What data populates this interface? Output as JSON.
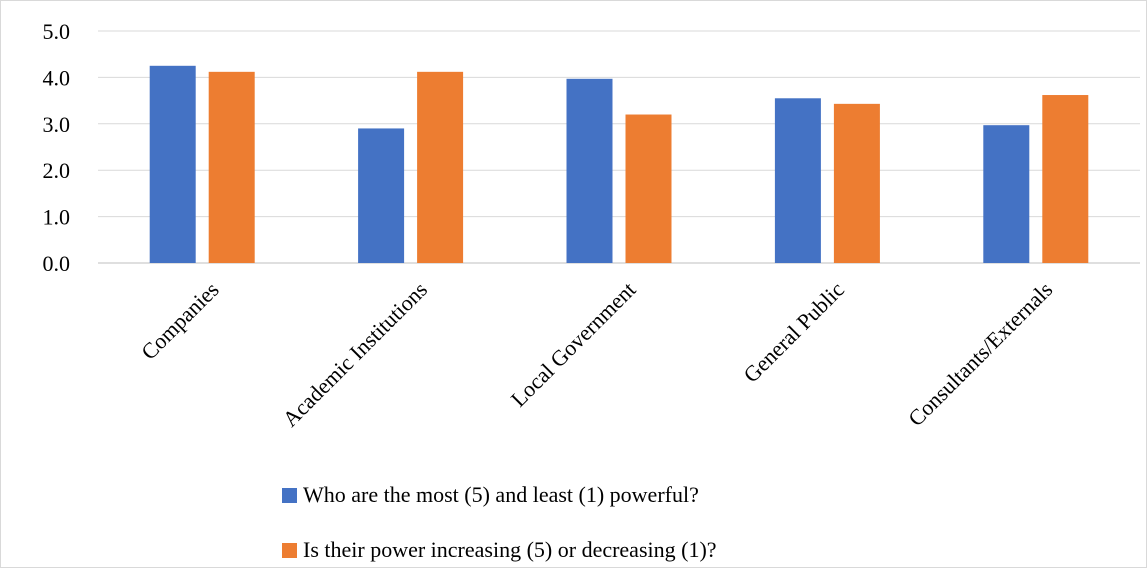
{
  "chart_data": {
    "type": "bar",
    "categories": [
      "Companies",
      "Academic Institutions",
      "Local Government",
      "General Public",
      "Consultants/Externals"
    ],
    "series": [
      {
        "name": "Who are the most (5) and least (1) powerful?",
        "values": [
          4.25,
          2.9,
          3.97,
          3.55,
          2.97
        ],
        "color": "#4472C4"
      },
      {
        "name": "Is their power increasing (5) or decreasing (1)?",
        "values": [
          4.12,
          4.12,
          3.2,
          3.43,
          3.62
        ],
        "color": "#ED7D31"
      }
    ],
    "title": "",
    "xlabel": "",
    "ylabel": "",
    "ylim": [
      0,
      5
    ],
    "yticks": [
      "0.0",
      "1.0",
      "2.0",
      "3.0",
      "4.0",
      "5.0"
    ],
    "grid": true,
    "legend_position": "bottom"
  }
}
